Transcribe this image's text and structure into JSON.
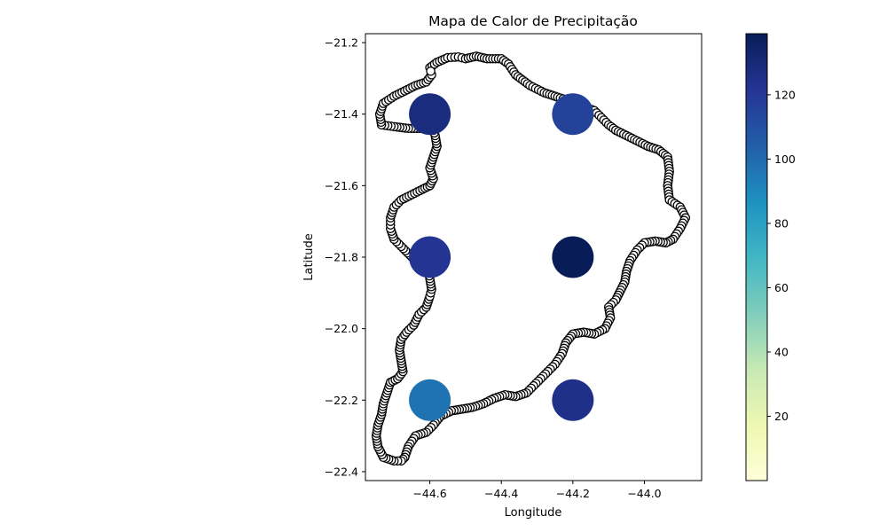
{
  "chart_data": {
    "type": "scatter",
    "title": "Mapa de Calor de Precipitação",
    "xlabel": "Longitude",
    "ylabel": "Latitude",
    "xlim": [
      -44.78,
      -43.84
    ],
    "ylim": [
      -22.425,
      -21.175
    ],
    "x_ticks": [
      -44.6,
      -44.4,
      -44.2,
      -44.0
    ],
    "x_tick_labels": [
      "−44.6",
      "−44.4",
      "−44.2",
      "−44.0"
    ],
    "y_ticks": [
      -21.2,
      -21.4,
      -21.6,
      -21.8,
      -22.0,
      -22.2,
      -22.4
    ],
    "y_tick_labels": [
      "−21.2",
      "−21.4",
      "−21.6",
      "−21.8",
      "−22.0",
      "−22.2",
      "−22.4"
    ],
    "grid": false,
    "colormap": "YlGnBu",
    "colorbar": {
      "range": [
        0,
        139
      ],
      "ticks": [
        20,
        40,
        60,
        80,
        100,
        120
      ],
      "tick_labels": [
        "20",
        "40",
        "60",
        "80",
        "100",
        "120"
      ]
    },
    "points": [
      {
        "x": -44.6,
        "y": -21.4,
        "value": 128
      },
      {
        "x": -44.2,
        "y": -21.4,
        "value": 116
      },
      {
        "x": -44.6,
        "y": -21.8,
        "value": 122
      },
      {
        "x": -44.2,
        "y": -21.8,
        "value": 139
      },
      {
        "x": -44.6,
        "y": -22.2,
        "value": 97
      },
      {
        "x": -44.2,
        "y": -22.2,
        "value": 125
      }
    ],
    "boundary": {
      "color": "#000000",
      "path": [
        [
          -44.6,
          -21.27
        ],
        [
          -44.58,
          -21.255
        ],
        [
          -44.55,
          -21.242
        ],
        [
          -44.52,
          -21.24
        ],
        [
          -44.5,
          -21.245
        ],
        [
          -44.47,
          -21.238
        ],
        [
          -44.44,
          -21.245
        ],
        [
          -44.4,
          -21.245
        ],
        [
          -44.38,
          -21.26
        ],
        [
          -44.36,
          -21.29
        ],
        [
          -44.32,
          -21.32
        ],
        [
          -44.28,
          -21.34
        ],
        [
          -44.25,
          -21.35
        ],
        [
          -44.22,
          -21.36
        ],
        [
          -44.18,
          -21.375
        ],
        [
          -44.14,
          -21.39
        ],
        [
          -44.12,
          -21.41
        ],
        [
          -44.1,
          -21.43
        ],
        [
          -44.08,
          -21.445
        ],
        [
          -44.05,
          -21.46
        ],
        [
          -44.02,
          -21.475
        ],
        [
          -43.99,
          -21.49
        ],
        [
          -43.96,
          -21.5
        ],
        [
          -43.935,
          -21.52
        ],
        [
          -43.93,
          -21.56
        ],
        [
          -43.935,
          -21.6
        ],
        [
          -43.93,
          -21.64
        ],
        [
          -43.9,
          -21.66
        ],
        [
          -43.885,
          -21.69
        ],
        [
          -43.9,
          -21.72
        ],
        [
          -43.92,
          -21.75
        ],
        [
          -43.94,
          -21.76
        ],
        [
          -43.97,
          -21.755
        ],
        [
          -44.0,
          -21.76
        ],
        [
          -44.02,
          -21.78
        ],
        [
          -44.04,
          -21.81
        ],
        [
          -44.05,
          -21.84
        ],
        [
          -44.055,
          -21.87
        ],
        [
          -44.07,
          -21.9
        ],
        [
          -44.08,
          -21.92
        ],
        [
          -44.1,
          -21.94
        ],
        [
          -44.095,
          -21.97
        ],
        [
          -44.11,
          -22.0
        ],
        [
          -44.14,
          -22.015
        ],
        [
          -44.17,
          -22.01
        ],
        [
          -44.2,
          -22.015
        ],
        [
          -44.22,
          -22.04
        ],
        [
          -44.23,
          -22.07
        ],
        [
          -44.25,
          -22.1
        ],
        [
          -44.27,
          -22.12
        ],
        [
          -44.29,
          -22.14
        ],
        [
          -44.31,
          -22.16
        ],
        [
          -44.33,
          -22.18
        ],
        [
          -44.36,
          -22.19
        ],
        [
          -44.39,
          -22.185
        ],
        [
          -44.42,
          -22.195
        ],
        [
          -44.45,
          -22.21
        ],
        [
          -44.48,
          -22.22
        ],
        [
          -44.51,
          -22.225
        ],
        [
          -44.54,
          -22.23
        ],
        [
          -44.57,
          -22.245
        ],
        [
          -44.59,
          -22.27
        ],
        [
          -44.61,
          -22.29
        ],
        [
          -44.64,
          -22.3
        ],
        [
          -44.66,
          -22.33
        ],
        [
          -44.67,
          -22.36
        ],
        [
          -44.68,
          -22.37
        ],
        [
          -44.7,
          -22.37
        ],
        [
          -44.73,
          -22.36
        ],
        [
          -44.745,
          -22.33
        ],
        [
          -44.75,
          -22.3
        ],
        [
          -44.745,
          -22.27
        ],
        [
          -44.735,
          -22.24
        ],
        [
          -44.73,
          -22.21
        ],
        [
          -44.72,
          -22.18
        ],
        [
          -44.71,
          -22.15
        ],
        [
          -44.69,
          -22.14
        ],
        [
          -44.675,
          -22.12
        ],
        [
          -44.68,
          -22.09
        ],
        [
          -44.685,
          -22.06
        ],
        [
          -44.68,
          -22.03
        ],
        [
          -44.665,
          -22.01
        ],
        [
          -44.645,
          -21.99
        ],
        [
          -44.63,
          -21.96
        ],
        [
          -44.61,
          -21.94
        ],
        [
          -44.6,
          -21.91
        ],
        [
          -44.595,
          -21.89
        ],
        [
          -44.6,
          -21.86
        ],
        [
          -44.605,
          -21.83
        ],
        [
          -44.62,
          -21.81
        ],
        [
          -44.65,
          -21.8
        ],
        [
          -44.68,
          -21.77
        ],
        [
          -44.7,
          -21.75
        ],
        [
          -44.71,
          -21.72
        ],
        [
          -44.71,
          -21.69
        ],
        [
          -44.7,
          -21.66
        ],
        [
          -44.68,
          -21.64
        ],
        [
          -44.65,
          -21.625
        ],
        [
          -44.62,
          -21.61
        ],
        [
          -44.6,
          -21.6
        ],
        [
          -44.59,
          -21.58
        ],
        [
          -44.6,
          -21.55
        ],
        [
          -44.59,
          -21.52
        ],
        [
          -44.58,
          -21.49
        ],
        [
          -44.585,
          -21.46
        ],
        [
          -44.59,
          -21.445
        ],
        [
          -44.62,
          -21.44
        ],
        [
          -44.66,
          -21.44
        ],
        [
          -44.7,
          -21.435
        ],
        [
          -44.735,
          -21.43
        ],
        [
          -44.74,
          -21.4
        ],
        [
          -44.73,
          -21.37
        ],
        [
          -44.7,
          -21.35
        ],
        [
          -44.67,
          -21.335
        ],
        [
          -44.64,
          -21.32
        ],
        [
          -44.61,
          -21.31
        ],
        [
          -44.595,
          -21.29
        ],
        [
          -44.6,
          -21.27
        ]
      ]
    }
  }
}
